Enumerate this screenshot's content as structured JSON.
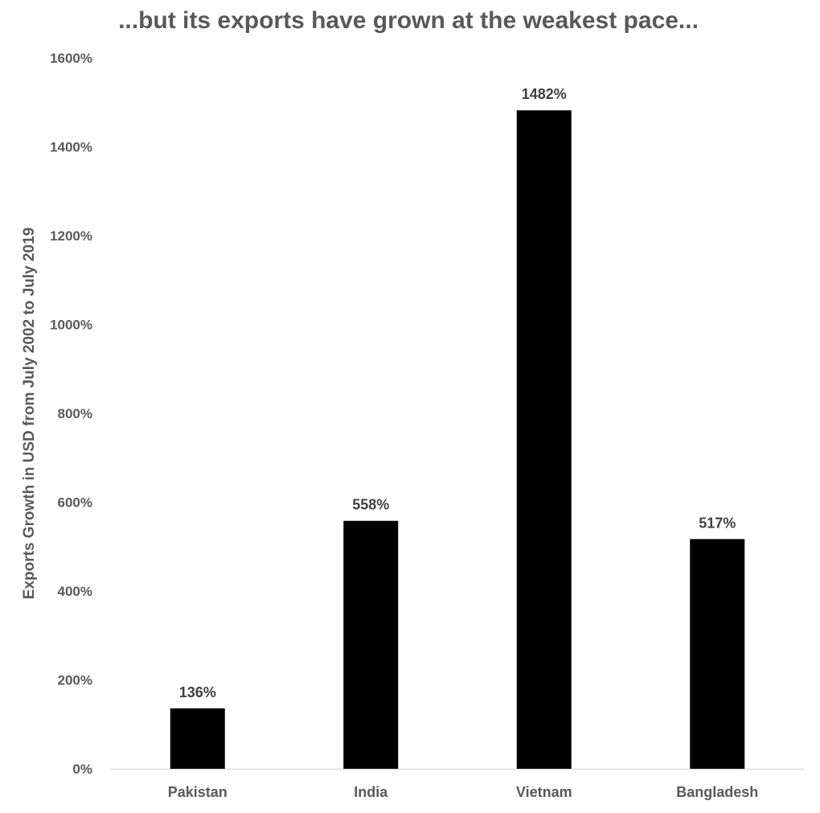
{
  "chart_data": {
    "type": "bar",
    "title": "...but its exports have grown at the weakest pace...",
    "xlabel": "",
    "ylabel": "Exports Growth in USD from July 2002 to July 2019",
    "categories": [
      "Pakistan",
      "India",
      "Vietnam",
      "Bangladesh"
    ],
    "values": [
      136,
      558,
      1482,
      517
    ],
    "data_labels": [
      "136%",
      "558%",
      "1482%",
      "517%"
    ],
    "ylim": [
      0,
      1600
    ],
    "yticks": [
      0,
      200,
      400,
      600,
      800,
      1000,
      1200,
      1400,
      1600
    ],
    "ytick_labels": [
      "0%",
      "200%",
      "400%",
      "600%",
      "800%",
      "1000%",
      "1200%",
      "1400%",
      "1600%"
    ],
    "grid": false,
    "legend": "none",
    "bar_color": "#000000"
  }
}
